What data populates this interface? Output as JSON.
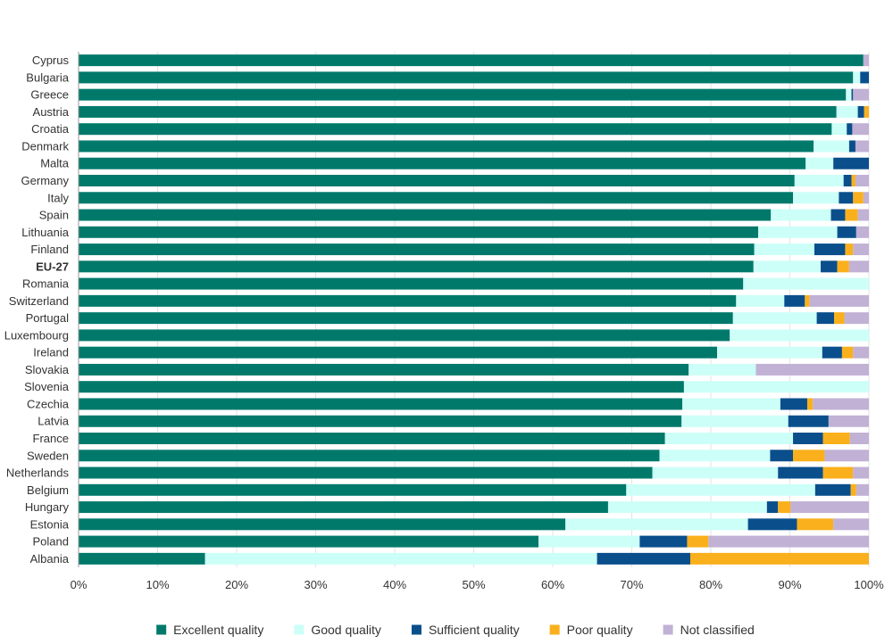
{
  "chart_data": {
    "type": "bar",
    "orientation": "horizontal",
    "stacked": true,
    "title": "",
    "xlabel": "",
    "ylabel": "",
    "xlim": [
      0,
      100
    ],
    "x_ticks": [
      "0%",
      "10%",
      "20%",
      "30%",
      "40%",
      "50%",
      "60%",
      "70%",
      "80%",
      "90%",
      "100%"
    ],
    "grid": "vertical",
    "legend_position": "bottom",
    "highlight_category": "EU-27",
    "categories": [
      "Cyprus",
      "Bulgaria",
      "Greece",
      "Austria",
      "Croatia",
      "Denmark",
      "Malta",
      "Germany",
      "Italy",
      "Spain",
      "Lithuania",
      "Finland",
      "EU-27",
      "Romania",
      "Switzerland",
      "Portugal",
      "Luxembourg",
      "Ireland",
      "Slovakia",
      "Slovenia",
      "Czechia",
      "Latvia",
      "France",
      "Sweden",
      "Netherlands",
      "Belgium",
      "Hungary",
      "Estonia",
      "Poland",
      "Albania"
    ],
    "series": [
      {
        "name": "Excellent quality",
        "color": "#00796b",
        "values": [
          99.3,
          98.0,
          97.1,
          95.9,
          95.3,
          93.0,
          92.0,
          90.6,
          90.4,
          87.6,
          86.0,
          85.5,
          85.4,
          84.1,
          83.2,
          82.8,
          82.4,
          80.8,
          77.2,
          76.6,
          76.4,
          76.3,
          74.2,
          73.5,
          72.6,
          69.3,
          67.0,
          61.6,
          58.2,
          16.0
        ]
      },
      {
        "name": "Good quality",
        "color": "#ccfff7",
        "values": [
          0.0,
          0.9,
          0.7,
          2.7,
          1.9,
          4.5,
          3.5,
          6.2,
          5.8,
          7.6,
          10.0,
          7.6,
          8.5,
          15.9,
          6.1,
          10.6,
          17.6,
          13.3,
          8.5,
          23.4,
          12.4,
          13.5,
          16.2,
          14.0,
          15.9,
          23.9,
          20.1,
          23.1,
          12.8,
          49.6
        ]
      },
      {
        "name": "Sufficient quality",
        "color": "#0a4f8c",
        "values": [
          0.0,
          1.1,
          0.2,
          0.8,
          0.7,
          0.8,
          4.5,
          1.0,
          1.8,
          1.8,
          2.4,
          3.9,
          2.1,
          0.0,
          2.6,
          2.2,
          0.0,
          2.5,
          0.0,
          0.0,
          3.4,
          5.1,
          3.8,
          2.9,
          5.7,
          4.5,
          1.4,
          6.2,
          6.0,
          11.8
        ]
      },
      {
        "name": "Poor quality",
        "color": "#f9b01c",
        "values": [
          0.0,
          0.0,
          0.0,
          0.6,
          0.0,
          0.0,
          0.0,
          0.5,
          1.3,
          1.6,
          0.0,
          1.0,
          1.5,
          0.0,
          0.6,
          1.3,
          0.0,
          1.4,
          0.0,
          0.0,
          0.7,
          0.0,
          3.4,
          4.0,
          3.8,
          0.7,
          1.6,
          4.6,
          2.7,
          22.6
        ]
      },
      {
        "name": "Not classified",
        "color": "#c1b1d5",
        "values": [
          0.7,
          0.0,
          2.0,
          0.0,
          2.1,
          1.7,
          0.0,
          1.7,
          0.7,
          1.4,
          1.6,
          2.0,
          2.5,
          0.0,
          7.5,
          3.1,
          0.0,
          2.0,
          14.3,
          0.0,
          7.1,
          5.1,
          2.4,
          5.6,
          2.0,
          1.6,
          9.9,
          4.5,
          20.3,
          0.0
        ]
      }
    ]
  }
}
